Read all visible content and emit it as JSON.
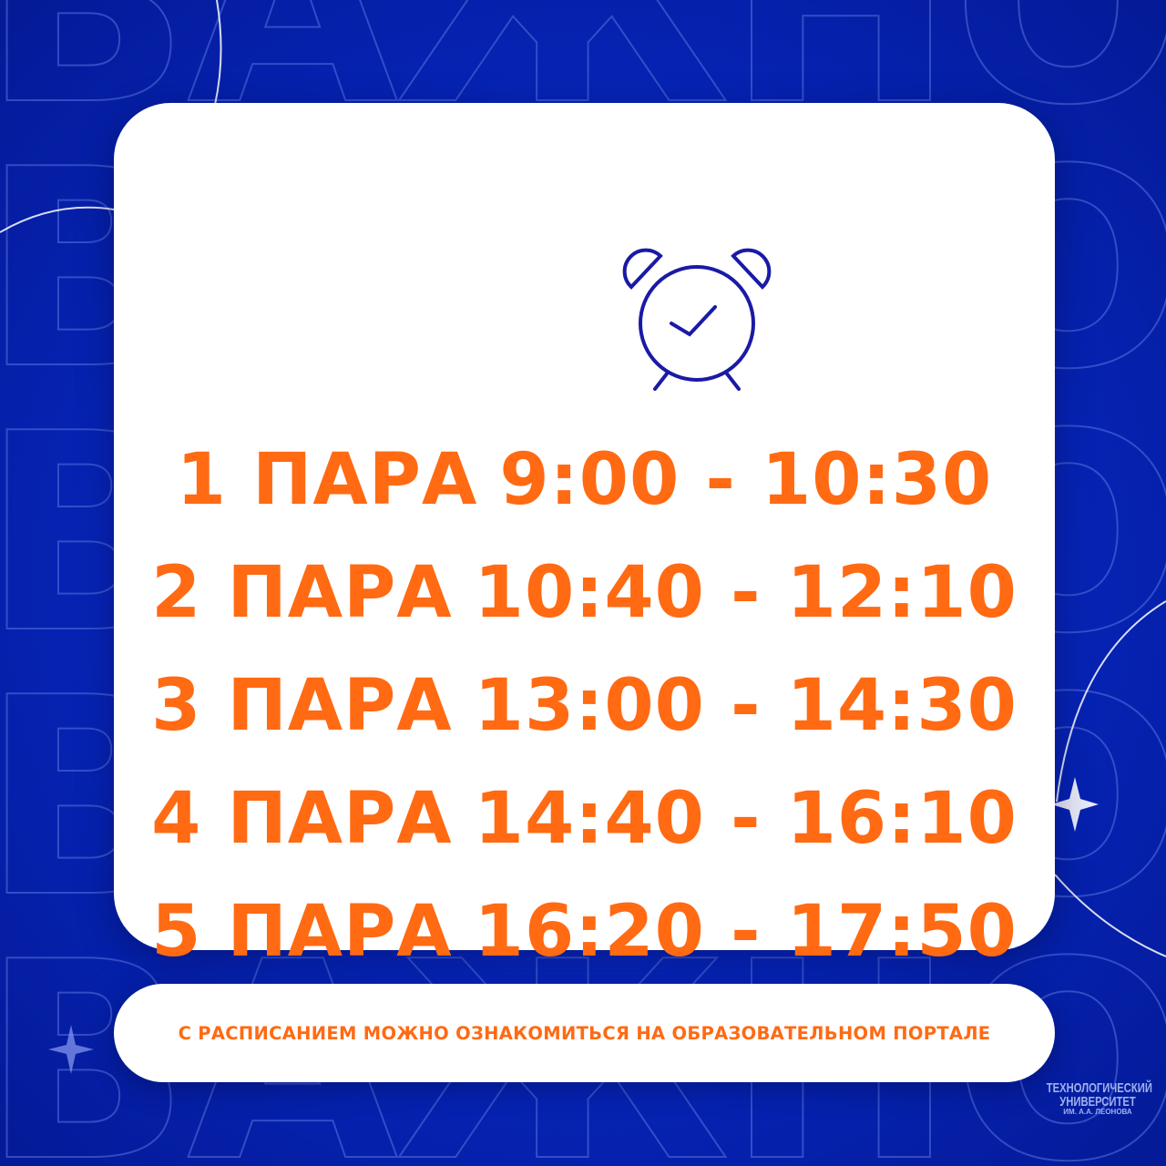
{
  "background_word": "ВАЖНО",
  "colors": {
    "accent": "#ff6a13",
    "icon": "#1a1aa6",
    "background": "#0624b8",
    "card": "#ffffff"
  },
  "icon": "alarm-clock-check-icon",
  "schedule": [
    {
      "label": "1 ПАРА",
      "time": "9:00 - 10:30"
    },
    {
      "label": "2 ПАРА",
      "time": "10:40 - 12:10"
    },
    {
      "label": "3 ПАРА",
      "time": "13:00 - 14:30"
    },
    {
      "label": "4 ПАРА",
      "time": "14:40 - 16:10"
    },
    {
      "label": "5 ПАРА",
      "time": "16:20 - 17:50"
    }
  ],
  "footer_note": "С РАСПИСАНИЕМ МОЖНО ОЗНАКОМИТЬСЯ НА ОБРАЗОВАТЕЛЬНОМ ПОРТАЛЕ",
  "logo": {
    "line1": "ТЕХНОЛОГИЧЕСКИЙ",
    "line2": "УНИВЕРСИТЕТ",
    "line3": "ИМ. А.А. ЛЕОНОВА"
  }
}
